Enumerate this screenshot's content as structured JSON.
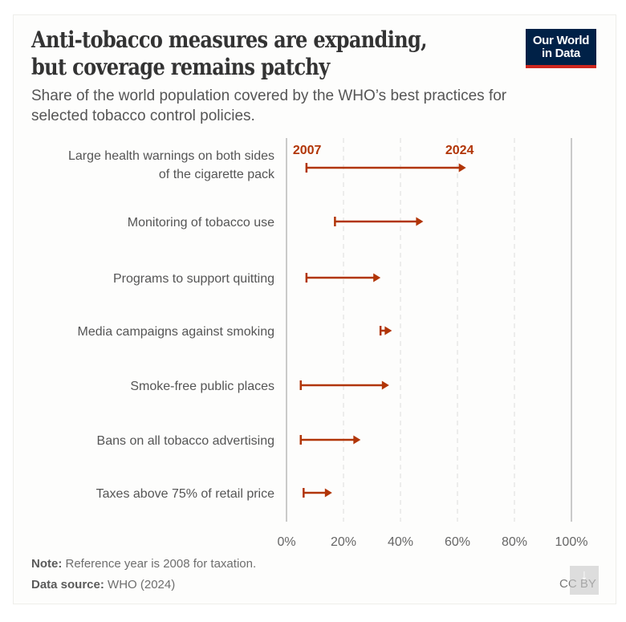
{
  "header": {
    "title_line1": "Anti-tobacco measures are expanding,",
    "title_line2": "but coverage remains patchy",
    "subtitle": "Share of the world population covered by the WHO’s best practices for selected tobacco control policies.",
    "logo_line1": "Our World",
    "logo_line2": "in Data"
  },
  "footer": {
    "note_label": "Note:",
    "note_text": " Reference year is 2008 for taxation.",
    "source_label": "Data source:",
    "source_text": " WHO (2024)",
    "license": "CC BY",
    "download_icon": "download-icon"
  },
  "colors": {
    "arrow": "#b13507",
    "brand_navy": "#002147",
    "brand_red": "#ce261e"
  },
  "chart_data": {
    "type": "arrow-range",
    "title": "Anti-tobacco measures are expanding, but coverage remains patchy",
    "xlabel": "",
    "ylabel": "",
    "xlim": [
      0,
      100
    ],
    "x_ticks": [
      0,
      20,
      40,
      60,
      80,
      100
    ],
    "x_tick_labels": [
      "0%",
      "20%",
      "40%",
      "60%",
      "80%",
      "100%"
    ],
    "grid": true,
    "start_year_label": "2007",
    "end_year_label": "2024",
    "series": [
      {
        "name": "2007",
        "values": [
          7,
          17,
          7,
          33,
          5,
          5,
          6
        ]
      },
      {
        "name": "2024",
        "values": [
          63,
          48,
          33,
          37,
          36,
          26,
          16
        ]
      }
    ],
    "categories": [
      [
        "Large health warnings on both sides",
        "of the cigarette pack"
      ],
      [
        "Monitoring of tobacco use"
      ],
      [
        "Programs to support quitting"
      ],
      [
        "Media campaigns against smoking"
      ],
      [
        "Smoke-free public places"
      ],
      [
        "Bans on all tobacco advertising"
      ],
      [
        "Taxes above 75% of retail price"
      ]
    ]
  }
}
